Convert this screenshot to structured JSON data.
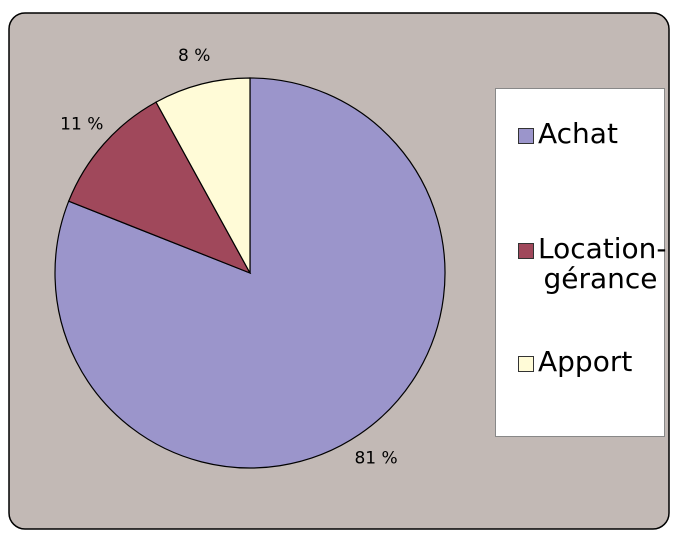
{
  "chart_data": {
    "type": "pie",
    "categories": [
      "Achat",
      "Location-gérance",
      "Apport"
    ],
    "values": [
      81,
      11,
      8
    ],
    "value_labels": [
      "81 %",
      "11 %",
      "8 %"
    ],
    "colors": [
      "#9b95cb",
      "#a0485b",
      "#fffbd7"
    ],
    "legend": "right"
  }
}
